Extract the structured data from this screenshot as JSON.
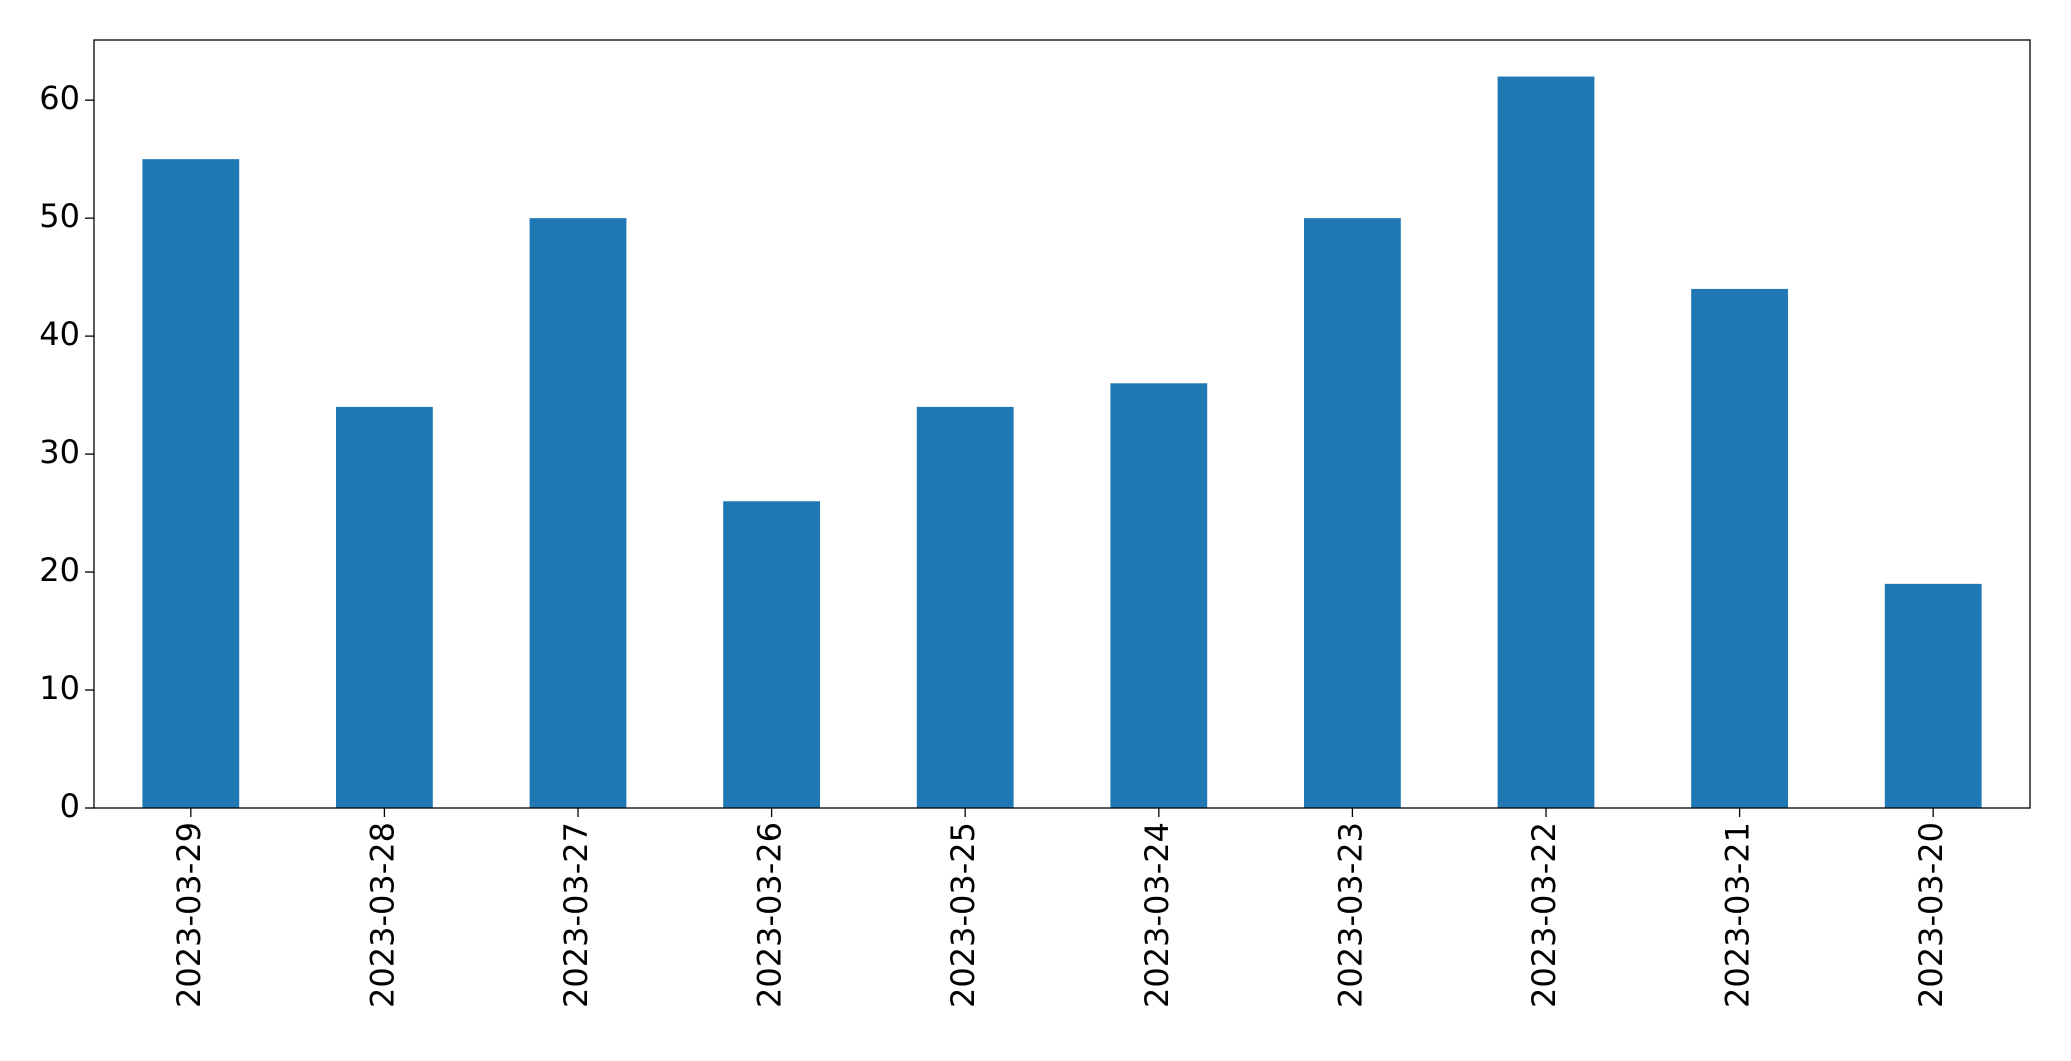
{
  "chart_data": {
    "type": "bar",
    "categories": [
      "2023-03-29",
      "2023-03-28",
      "2023-03-27",
      "2023-03-26",
      "2023-03-25",
      "2023-03-24",
      "2023-03-23",
      "2023-03-22",
      "2023-03-21",
      "2023-03-20"
    ],
    "values": [
      55,
      34,
      50,
      26,
      34,
      36,
      50,
      62,
      44,
      19
    ],
    "color": "#1f77b4",
    "ylim": [
      0,
      65.1
    ],
    "yticks": [
      0,
      10,
      20,
      30,
      40,
      50,
      60
    ],
    "grid": false
  }
}
